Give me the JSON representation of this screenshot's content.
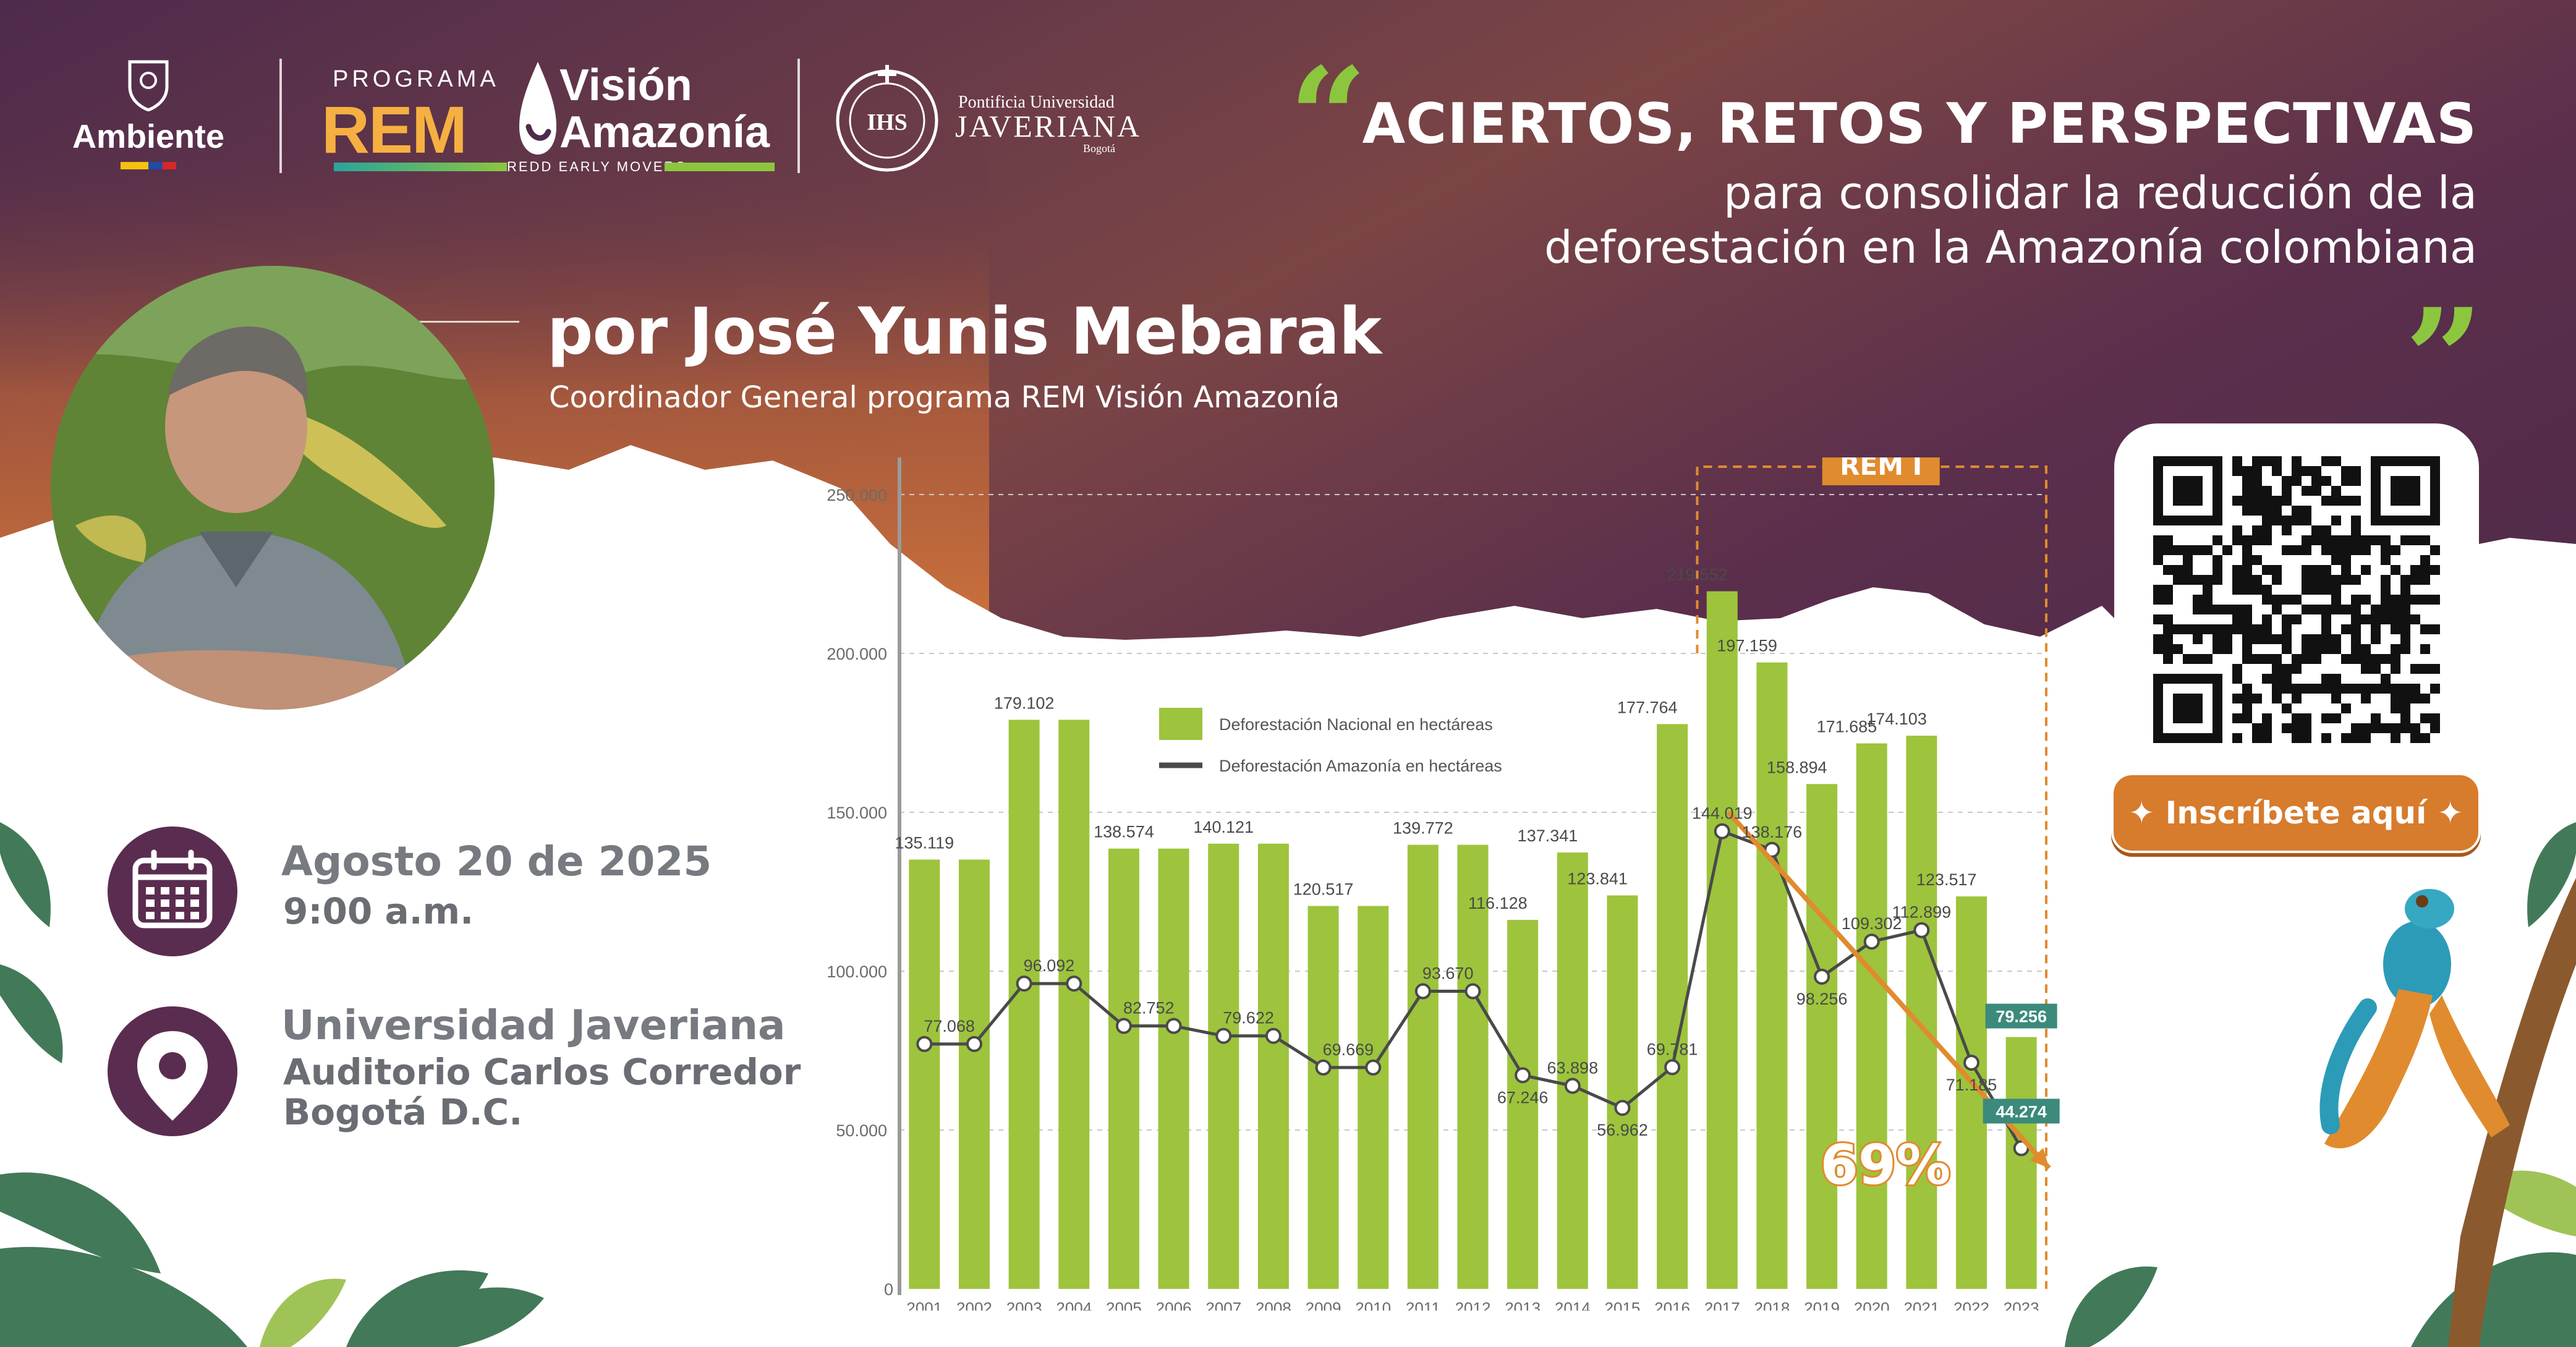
{
  "colors": {
    "bar": "#9dc43c",
    "line": "#4a4a4a",
    "accent_orange": "#e08b2e",
    "purple_dark": "#432444",
    "purple_icon": "#5a2d50",
    "green_quote": "#8cc63f",
    "highlight_teal": "#3b8a7c"
  },
  "logos": {
    "ambiente": "Ambiente",
    "programa": "PROGRAMA",
    "rem": "REM",
    "vision_line1": "Visión",
    "vision_line2": "Amazonía",
    "redd": "REDD EARLY MOVERS",
    "puj": "Pontificia Universidad",
    "javeriana": "JAVERIANA",
    "bogota": "Bogotá",
    "ihs": "IHS"
  },
  "title": {
    "open_quote": "“",
    "close_quote": "”",
    "main": "ACIERTOS, RETOS Y PERSPECTIVAS",
    "sub_line1": "para consolidar la reducción de la",
    "sub_line2": "deforestación en la Amazonía colombiana"
  },
  "speaker": {
    "name": "por José Yunis Mebarak",
    "role": "Coordinador General programa REM Visión Amazonía"
  },
  "event": {
    "date": "Agosto 20 de 2025",
    "time": "9:00 a.m.",
    "venue": "Universidad Javeriana",
    "room": "Auditorio Carlos Corredor",
    "city": "Bogotá D.C."
  },
  "icons": {
    "date": "calendar-icon",
    "place": "map-pin-icon"
  },
  "cta": {
    "label": "Inscríbete aquí"
  },
  "chart_data": {
    "type": "bar",
    "categories": [
      "2001",
      "2002",
      "2003",
      "2004",
      "2005",
      "2006",
      "2007",
      "2008",
      "2009",
      "2010",
      "2011",
      "2012",
      "2013",
      "2014",
      "2015",
      "2016",
      "2017",
      "2018",
      "2019",
      "2020",
      "2021",
      "2022",
      "2023"
    ],
    "series": [
      {
        "name": "Deforestación Nacional en hectáreas",
        "kind": "bar",
        "values": [
          135119,
          135119,
          179102,
          179102,
          138574,
          138574,
          140121,
          140121,
          120517,
          120517,
          139772,
          139772,
          116128,
          137341,
          123841,
          177764,
          219552,
          197159,
          158894,
          171685,
          174103,
          123517,
          79256
        ]
      },
      {
        "name": "Deforestación Amazonía en hectáreas",
        "kind": "line",
        "values": [
          77068,
          77068,
          96092,
          96092,
          82752,
          82752,
          79622,
          79622,
          69669,
          69669,
          93670,
          93670,
          67246,
          63898,
          56962,
          69781,
          144019,
          138176,
          98256,
          109302,
          112899,
          71185,
          44274
        ]
      }
    ],
    "bar_labels": [
      "135.119",
      "179.102",
      "138.574",
      "140.121",
      "120.517",
      "139.772",
      "116.128",
      "137.341",
      "123.841",
      "177.764",
      "219.552",
      "197.159",
      "158.894",
      "171.685",
      "174.103",
      "123.517",
      "79.256"
    ],
    "line_labels": [
      "77.068",
      "96.092",
      "82.752",
      "79.622",
      "69.669",
      "93.670",
      "67.246",
      "63.898",
      "56.962",
      "69.781",
      "144.019",
      "138.176",
      "98.256",
      "109.302",
      "112.899",
      "71.185",
      "44.274"
    ],
    "yticks": [
      "0",
      "50.000",
      "100.000",
      "150.000",
      "200.000",
      "250.000"
    ],
    "ylim": [
      0,
      250000
    ],
    "grid": true,
    "legend_position": "top-left",
    "annotation_period": "REM I",
    "annotation_reduction": "69%"
  }
}
